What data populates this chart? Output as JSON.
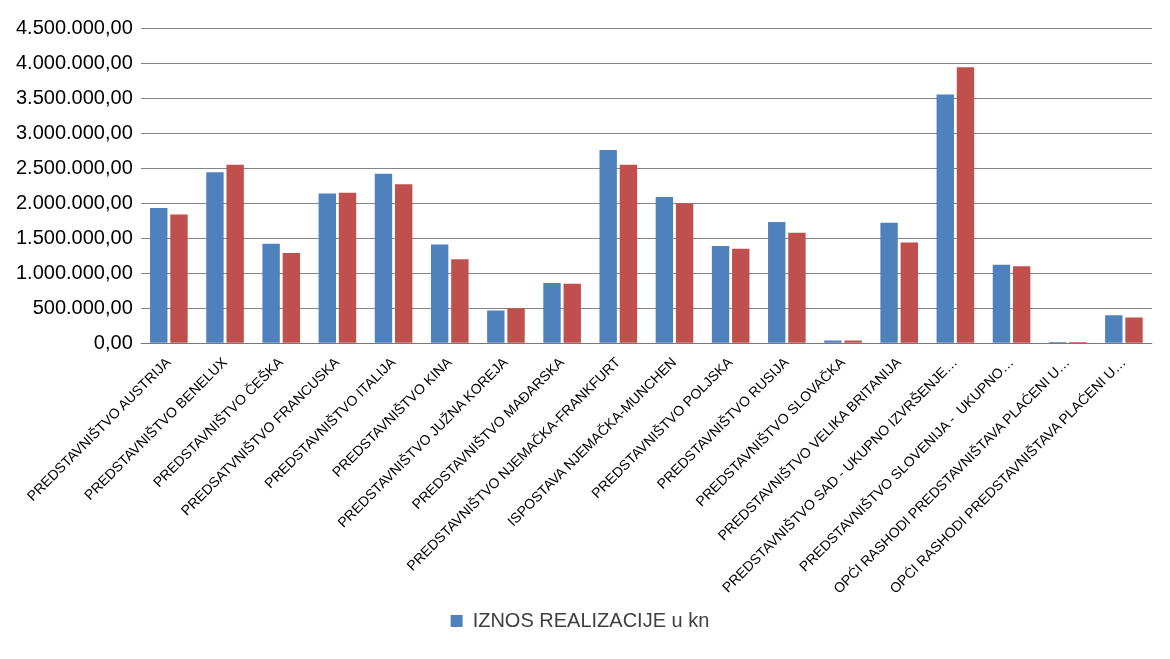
{
  "chart_data": {
    "type": "bar",
    "categories": [
      "PREDSTAVNIŠTVO AUSTRIJA",
      "PREDSTAVNIŠTVO BENELUX",
      "PREDSTAVNIŠTVO ČEŠKA",
      "PREDSATVNIŠTVO FRANCUSKA",
      "PREDSTAVNIŠTVO ITALIJA",
      "PREDSTAVNIŠTVO KINA",
      "PREDSTAVNIŠTVO JUŽNA KOREJA",
      "PREDSTAVNIŠTVO MAĐARSKA",
      "PREDSTAVNIŠTVO NJEMAČKA-FRANKFURT",
      "ISPOSTAVA NJEMAČKA-MUNCHEN",
      "PREDSTAVNIŠTVO POLJSKA",
      "PREDSTAVNIŠTVO RUSIJA",
      "PREDSTAVNIŠTVO SLOVAČKA",
      "PREDSTAVNIŠTVO VELIKA BRITANIJA",
      "PREDSTAVNIŠTVO SAD - UKUPNO IZVRŠENJE…",
      "PREDSTAVNIŠTVO SLOVENIJA -  UKUPNO…",
      "OPĆI RASHODI PREDSTAVNIŠTAVA PLAĆENI U…",
      "OPĆI RASHODI PREDSTAVNIŠTAVA PLAĆENI U…"
    ],
    "series": [
      {
        "name": "IZNOS REALIZACIJE u kn",
        "color": "#4f81bd",
        "values": [
          1930000,
          2440000,
          1420000,
          2140000,
          2420000,
          1410000,
          470000,
          860000,
          2760000,
          2090000,
          1390000,
          1730000,
          40000,
          1720000,
          3550000,
          1120000,
          20000,
          400000
        ]
      },
      {
        "color": "#c0504d",
        "values": [
          1840000,
          2550000,
          1290000,
          2150000,
          2270000,
          1200000,
          500000,
          850000,
          2550000,
          2000000,
          1350000,
          1580000,
          40000,
          1440000,
          3940000,
          1100000,
          20000,
          370000
        ]
      }
    ],
    "ylim": [
      0,
      4500000
    ],
    "yticks": [
      {
        "value": 0,
        "label": "0,00"
      },
      {
        "value": 500000,
        "label": "500.000,00"
      },
      {
        "value": 1000000,
        "label": "1.000.000,00"
      },
      {
        "value": 1500000,
        "label": "1.500.000,00"
      },
      {
        "value": 2000000,
        "label": "2.000.000,00"
      },
      {
        "value": 2500000,
        "label": "2.500.000,00"
      },
      {
        "value": 3000000,
        "label": "3.000.000,00"
      },
      {
        "value": 3500000,
        "label": "3.500.000,00"
      },
      {
        "value": 4000000,
        "label": "4.000.000,00"
      },
      {
        "value": 4500000,
        "label": "4.500.000,00"
      }
    ],
    "grid": "y",
    "legend": "bottom"
  }
}
